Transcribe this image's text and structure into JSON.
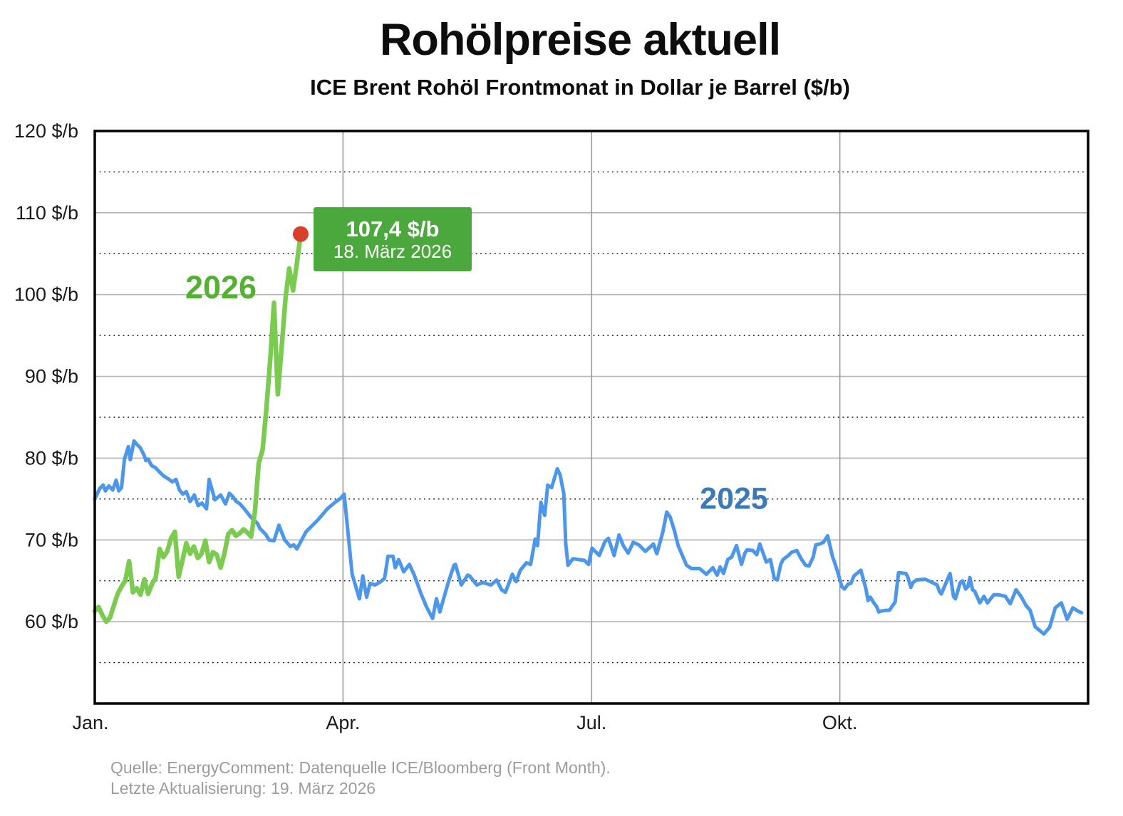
{
  "page": {
    "title": "Rohölpreise aktuell",
    "subtitle": "ICE Brent Rohöl Frontmonat in Dollar je Barrel ($/b)",
    "footer_line1": "Quelle: EnergyComment: Datenquelle ICE/Bloomberg (Front Month).",
    "footer_line2": "Letzte Aktualisierung: 19. März 2026"
  },
  "chart_data": {
    "type": "line",
    "title": "Rohölpreise aktuell",
    "subtitle": "ICE Brent Rohöl Frontmonat in Dollar je Barrel ($/b)",
    "ylabel_unit": "$/b",
    "ylim": [
      50,
      120
    ],
    "grid": "on",
    "y_ticks": [
      {
        "v": 120,
        "label": "120 $/b"
      },
      {
        "v": 110,
        "label": "110 $/b"
      },
      {
        "v": 100,
        "label": "100 $/b"
      },
      {
        "v": 90,
        "label": "90 $/b"
      },
      {
        "v": 80,
        "label": "80 $/b"
      },
      {
        "v": 70,
        "label": "70 $/b"
      },
      {
        "v": 60,
        "label": "60 $/b"
      }
    ],
    "y_major_gridlines": [
      110,
      100,
      90,
      80,
      70,
      60
    ],
    "y_minor_gridlines": [
      115,
      105,
      95,
      85,
      75,
      65,
      55
    ],
    "x_axis": {
      "unit": "trading-day index (equal-width months)",
      "range": [
        0,
        260.5
      ],
      "ticks": [
        {
          "d": 0,
          "label": "Jan."
        },
        {
          "d": 65.1,
          "label": "Apr."
        },
        {
          "d": 130.3,
          "label": "Jul."
        },
        {
          "d": 195.4,
          "label": "Okt."
        }
      ]
    },
    "series": [
      {
        "name": "2025",
        "color": "#4d97eb",
        "label_color": "#3b79b8",
        "stroke_width": 5,
        "points": [
          [
            0,
            75.0
          ],
          [
            1.3,
            76.3
          ],
          [
            2.2,
            76.7
          ],
          [
            2.8,
            76.0
          ],
          [
            3.7,
            76.6
          ],
          [
            4.7,
            76.1
          ],
          [
            5.6,
            77.3
          ],
          [
            6.3,
            76.0
          ],
          [
            7,
            76.4
          ],
          [
            7.8,
            79.9
          ],
          [
            8.8,
            81.4
          ],
          [
            9.3,
            79.8
          ],
          [
            10.3,
            82.1
          ],
          [
            11,
            81.7
          ],
          [
            11.9,
            81.3
          ],
          [
            12.9,
            80.4
          ],
          [
            13.4,
            79.7
          ],
          [
            14,
            79.9
          ],
          [
            14.9,
            79.1
          ],
          [
            16,
            78.8
          ],
          [
            17.2,
            78.2
          ],
          [
            18.1,
            77.8
          ],
          [
            19.2,
            77.5
          ],
          [
            20.3,
            77.1
          ],
          [
            21.3,
            77.4
          ],
          [
            22.2,
            76.1
          ],
          [
            23.1,
            75.6
          ],
          [
            24,
            75.9
          ],
          [
            25,
            74.7
          ],
          [
            25.6,
            75.1
          ],
          [
            26.1,
            75.5
          ],
          [
            27.1,
            74.2
          ],
          [
            28.1,
            74.5
          ],
          [
            29.3,
            73.8
          ],
          [
            30,
            77.4
          ],
          [
            31.5,
            74.9
          ],
          [
            33,
            75.5
          ],
          [
            34.3,
            74.4
          ],
          [
            35.3,
            75.7
          ],
          [
            36.2,
            75.3
          ],
          [
            37.1,
            74.7
          ],
          [
            38.1,
            74.4
          ],
          [
            39.2,
            73.8
          ],
          [
            40.9,
            72.8
          ],
          [
            42.7,
            72.0
          ],
          [
            43.3,
            71.4
          ],
          [
            44.8,
            70.7
          ],
          [
            45.7,
            70.0
          ],
          [
            47,
            69.9
          ],
          [
            48.3,
            71.8
          ],
          [
            49.8,
            70.0
          ],
          [
            51.3,
            69.2
          ],
          [
            52.2,
            69.4
          ],
          [
            53,
            68.9
          ],
          [
            55.4,
            71.0
          ],
          [
            58.6,
            72.5
          ],
          [
            61,
            73.8
          ],
          [
            63,
            74.6
          ],
          [
            64.5,
            75.1
          ],
          [
            65.4,
            75.6
          ],
          [
            67.5,
            65.8
          ],
          [
            69.4,
            62.8
          ],
          [
            70.3,
            65.6
          ],
          [
            71.3,
            63.0
          ],
          [
            72.2,
            64.7
          ],
          [
            73.5,
            64.5
          ],
          [
            75,
            64.9
          ],
          [
            76,
            65.3
          ],
          [
            76.9,
            68.0
          ],
          [
            78.2,
            68.0
          ],
          [
            78.8,
            66.6
          ],
          [
            79.7,
            67.6
          ],
          [
            81,
            66.1
          ],
          [
            82.5,
            67.0
          ],
          [
            83.8,
            65.7
          ],
          [
            85.5,
            63.5
          ],
          [
            87,
            61.8
          ],
          [
            88.6,
            60.4
          ],
          [
            89.6,
            62.8
          ],
          [
            90.5,
            61.2
          ],
          [
            92.7,
            64.8
          ],
          [
            94.2,
            66.9
          ],
          [
            94.6,
            67.0
          ],
          [
            96.1,
            64.5
          ],
          [
            97.8,
            65.7
          ],
          [
            98.3,
            65.6
          ],
          [
            100.2,
            64.5
          ],
          [
            101.7,
            64.8
          ],
          [
            103.9,
            64.5
          ],
          [
            105.4,
            65.1
          ],
          [
            106.7,
            63.9
          ],
          [
            107.7,
            63.6
          ],
          [
            109.5,
            65.8
          ],
          [
            110.5,
            64.9
          ],
          [
            111.6,
            66.3
          ],
          [
            113.2,
            67.2
          ],
          [
            114.3,
            67.0
          ],
          [
            115.5,
            70.1
          ],
          [
            116.1,
            69.3
          ],
          [
            117,
            74.6
          ],
          [
            118,
            73.0
          ],
          [
            118.8,
            76.7
          ],
          [
            119.8,
            76.4
          ],
          [
            121.3,
            78.7
          ],
          [
            122,
            78.0
          ],
          [
            123,
            75.7
          ],
          [
            123.5,
            69.6
          ],
          [
            124.1,
            66.9
          ],
          [
            125.4,
            67.7
          ],
          [
            126.9,
            67.6
          ],
          [
            128.4,
            67.5
          ],
          [
            129.5,
            67.0
          ],
          [
            130.4,
            69.0
          ],
          [
            132.3,
            68.1
          ],
          [
            133.8,
            69.8
          ],
          [
            134.7,
            70.2
          ],
          [
            136.2,
            68.1
          ],
          [
            137.5,
            70.6
          ],
          [
            138.6,
            69.3
          ],
          [
            139.9,
            68.4
          ],
          [
            141.2,
            69.7
          ],
          [
            142.7,
            69.4
          ],
          [
            144.4,
            68.6
          ],
          [
            146.5,
            69.5
          ],
          [
            147.4,
            68.3
          ],
          [
            149,
            71.0
          ],
          [
            150,
            73.4
          ],
          [
            150.9,
            72.8
          ],
          [
            152.1,
            71.0
          ],
          [
            153,
            69.3
          ],
          [
            155.2,
            66.9
          ],
          [
            156.5,
            66.5
          ],
          [
            158.6,
            66.5
          ],
          [
            160.4,
            65.8
          ],
          [
            162.1,
            66.6
          ],
          [
            163.2,
            65.7
          ],
          [
            164,
            66.7
          ],
          [
            164.9,
            65.9
          ],
          [
            166,
            67.6
          ],
          [
            167,
            67.9
          ],
          [
            168.3,
            69.3
          ],
          [
            169.6,
            67.0
          ],
          [
            170.5,
            68.4
          ],
          [
            171.1,
            68.8
          ],
          [
            172.6,
            68.7
          ],
          [
            173.6,
            68.2
          ],
          [
            174.4,
            69.5
          ],
          [
            176.1,
            67.3
          ],
          [
            177.2,
            67.6
          ],
          [
            178.2,
            65.3
          ],
          [
            179,
            65.1
          ],
          [
            179.9,
            67.0
          ],
          [
            180.5,
            67.6
          ],
          [
            181.9,
            68.1
          ],
          [
            182.8,
            68.5
          ],
          [
            184.1,
            68.7
          ],
          [
            185.4,
            67.6
          ],
          [
            186.4,
            66.9
          ],
          [
            187.3,
            66.8
          ],
          [
            188.4,
            67.9
          ],
          [
            189.1,
            69.4
          ],
          [
            190.1,
            69.5
          ],
          [
            191.1,
            69.7
          ],
          [
            192.2,
            70.5
          ],
          [
            193.5,
            67.9
          ],
          [
            194,
            67.3
          ],
          [
            195,
            65.8
          ],
          [
            195.9,
            64.3
          ],
          [
            196.6,
            64.0
          ],
          [
            197.6,
            64.6
          ],
          [
            198.3,
            64.7
          ],
          [
            199.1,
            65.6
          ],
          [
            200.4,
            66.1
          ],
          [
            200.9,
            66.3
          ],
          [
            201.5,
            65.3
          ],
          [
            202.2,
            64.1
          ],
          [
            202.8,
            62.6
          ],
          [
            203.4,
            63.0
          ],
          [
            204.3,
            62.3
          ],
          [
            205,
            61.9
          ],
          [
            205.6,
            61.2
          ],
          [
            206.2,
            61.3
          ],
          [
            207.5,
            61.4
          ],
          [
            208.4,
            61.4
          ],
          [
            209.9,
            62.4
          ],
          [
            210.8,
            66.0
          ],
          [
            212.7,
            65.9
          ],
          [
            213.2,
            65.5
          ],
          [
            214,
            64.2
          ],
          [
            214.6,
            64.8
          ],
          [
            215.5,
            65.1
          ],
          [
            217.7,
            65.2
          ],
          [
            219.6,
            64.8
          ],
          [
            220.9,
            64.5
          ],
          [
            221.5,
            63.7
          ],
          [
            222,
            63.4
          ],
          [
            224.3,
            65.9
          ],
          [
            225.2,
            63.1
          ],
          [
            225.7,
            62.8
          ],
          [
            227,
            64.8
          ],
          [
            227.6,
            65.0
          ],
          [
            228.4,
            64.0
          ],
          [
            229,
            64.3
          ],
          [
            229.5,
            65.4
          ],
          [
            230.2,
            63.9
          ],
          [
            230.8,
            63.7
          ],
          [
            232.1,
            62.3
          ],
          [
            233.2,
            63.1
          ],
          [
            234.1,
            62.3
          ],
          [
            235.8,
            63.3
          ],
          [
            236.9,
            63.3
          ],
          [
            238.8,
            63.1
          ],
          [
            240.1,
            62.2
          ],
          [
            241.6,
            63.9
          ],
          [
            242.9,
            63.1
          ],
          [
            244.2,
            62.0
          ],
          [
            245.3,
            61.4
          ],
          [
            246.6,
            59.4
          ],
          [
            248.9,
            58.5
          ],
          [
            250.4,
            59.3
          ],
          [
            251.9,
            61.7
          ],
          [
            253.5,
            62.3
          ],
          [
            255,
            60.3
          ],
          [
            256.5,
            61.7
          ],
          [
            257.8,
            61.3
          ],
          [
            258.8,
            61.1
          ]
        ]
      },
      {
        "name": "2026",
        "color": "#7bcb51",
        "label_color": "#54b232",
        "stroke_width": 6.5,
        "points": [
          [
            0,
            61.3
          ],
          [
            1,
            61.8
          ],
          [
            2,
            60.8
          ],
          [
            3,
            60.0
          ],
          [
            4,
            60.5
          ],
          [
            5,
            62.0
          ],
          [
            6,
            63.4
          ],
          [
            7,
            64.3
          ],
          [
            8,
            65.0
          ],
          [
            9,
            67.4
          ],
          [
            10,
            63.6
          ],
          [
            11,
            64.1
          ],
          [
            12,
            63.3
          ],
          [
            13,
            65.2
          ],
          [
            14,
            63.4
          ],
          [
            15,
            64.6
          ],
          [
            16,
            65.4
          ],
          [
            17,
            68.9
          ],
          [
            18,
            67.9
          ],
          [
            19,
            68.6
          ],
          [
            20,
            70.2
          ],
          [
            21,
            71.0
          ],
          [
            22,
            65.5
          ],
          [
            23,
            67.5
          ],
          [
            24,
            69.6
          ],
          [
            25,
            68.3
          ],
          [
            26,
            69.2
          ],
          [
            27,
            67.8
          ],
          [
            28,
            68.3
          ],
          [
            29,
            69.9
          ],
          [
            30,
            67.3
          ],
          [
            31,
            68.5
          ],
          [
            32,
            68.2
          ],
          [
            33,
            66.6
          ],
          [
            34,
            68.3
          ],
          [
            35,
            70.7
          ],
          [
            36,
            71.2
          ],
          [
            37,
            70.5
          ],
          [
            38,
            70.8
          ],
          [
            39,
            71.3
          ],
          [
            40,
            70.9
          ],
          [
            41,
            70.4
          ],
          [
            42,
            73.5
          ],
          [
            43,
            79.4
          ],
          [
            44,
            81.0
          ],
          [
            45,
            86.0
          ],
          [
            46,
            92.0
          ],
          [
            47,
            99.0
          ],
          [
            48,
            87.8
          ],
          [
            49,
            93.5
          ],
          [
            50,
            99.5
          ],
          [
            51,
            103.2
          ],
          [
            52,
            100.5
          ],
          [
            53,
            103.8
          ],
          [
            54,
            107.4
          ]
        ]
      }
    ],
    "annotation": {
      "price_label": "107,4 $/b",
      "date_label": "18. März 2026",
      "point_d": 54,
      "point_value": 107.4,
      "box_color": "#4ba83d",
      "text_color": "#ffffff",
      "marker_color": "#d9402c"
    },
    "colors": {
      "major_gridline": "#b3b3b3",
      "month_gridline": "#9b9b9b",
      "minor_gridline": "#000000",
      "frame": "#000000",
      "axis_text": "#1a1a1a"
    },
    "legend_position": "inline-labels"
  }
}
